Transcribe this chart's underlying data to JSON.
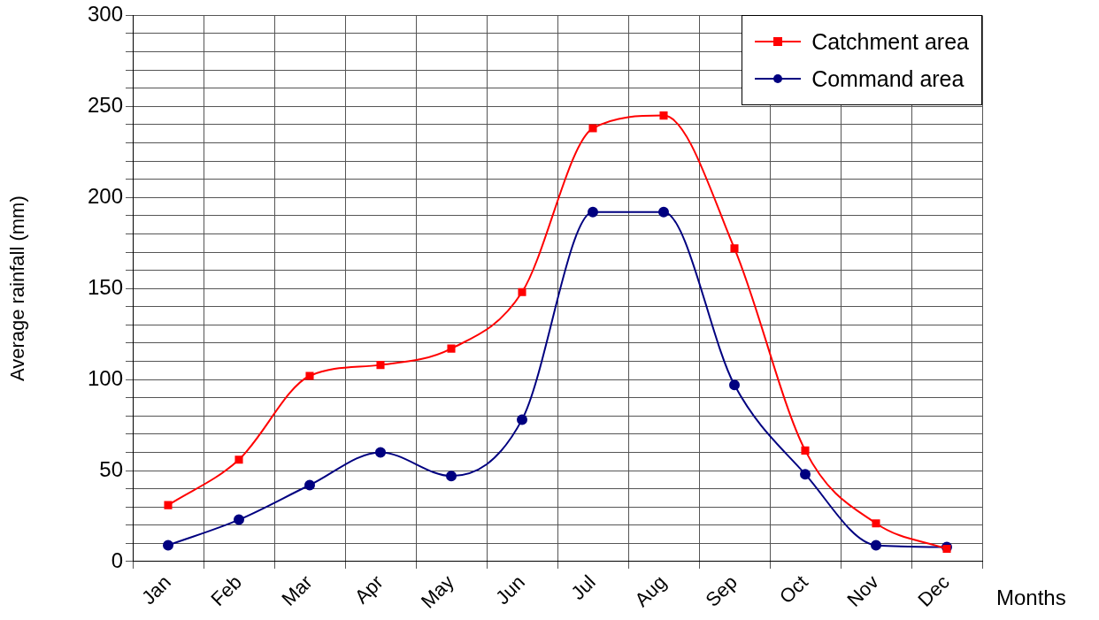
{
  "chart_data": {
    "type": "line",
    "xlabel": "Months",
    "ylabel": "Average rainfall (mm)",
    "categories": [
      "Jan",
      "Feb",
      "Mar",
      "Apr",
      "May",
      "Jun",
      "Jul",
      "Aug",
      "Sep",
      "Oct",
      "Nov",
      "Dec"
    ],
    "series": [
      {
        "name": "Catchment area",
        "color": "#ff0000",
        "marker": "square",
        "values": [
          31,
          56,
          102,
          108,
          117,
          148,
          238,
          245,
          172,
          61,
          21,
          7
        ]
      },
      {
        "name": "Command area",
        "color": "#000080",
        "marker": "circle",
        "values": [
          9,
          23,
          42,
          60,
          47,
          78,
          192,
          192,
          97,
          48,
          9,
          8
        ]
      }
    ],
    "ylim": [
      0,
      300
    ],
    "yticks": [
      0,
      {
        "value": 10,
        "label": null
      },
      {
        "value": 20,
        "label": null
      },
      {
        "value": 30,
        "label": null
      },
      {
        "value": 40,
        "label": null
      },
      50,
      {
        "value": 60,
        "label": null
      },
      {
        "value": 70,
        "label": null
      },
      {
        "value": 80,
        "label": null
      },
      {
        "value": 90,
        "label": null
      },
      100,
      {
        "value": 110,
        "label": null
      },
      {
        "value": 120,
        "label": null
      },
      {
        "value": 130,
        "label": null
      },
      {
        "value": 140,
        "label": null
      },
      150,
      {
        "value": 160,
        "label": null
      },
      {
        "value": 170,
        "label": null
      },
      {
        "value": 180,
        "label": null
      },
      {
        "value": 190,
        "label": null
      },
      200,
      {
        "value": 210,
        "label": null
      },
      {
        "value": 220,
        "label": null
      },
      {
        "value": 230,
        "label": null
      },
      {
        "value": 240,
        "label": null
      },
      250,
      {
        "value": 260,
        "label": null
      },
      {
        "value": 270,
        "label": null
      },
      {
        "value": 280,
        "label": null
      },
      {
        "value": 290,
        "label": null
      },
      300
    ],
    "grid": true,
    "legend": "top right",
    "line_style": "solid"
  }
}
